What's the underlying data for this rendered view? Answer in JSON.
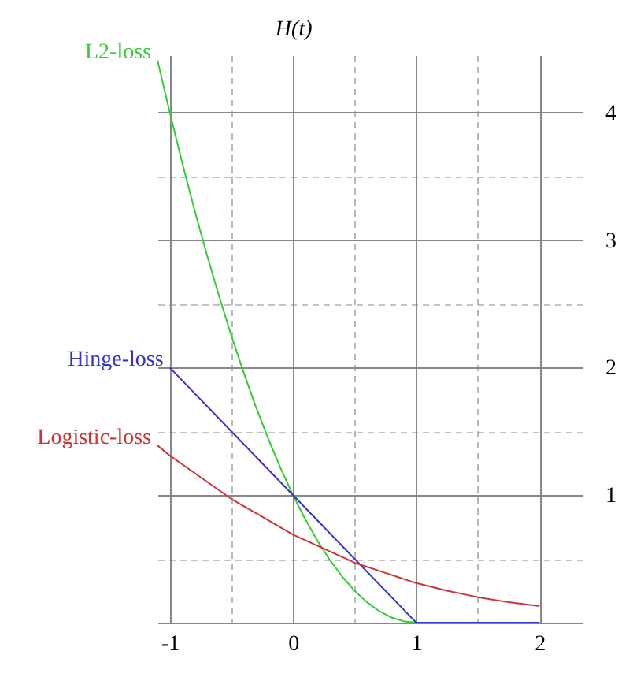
{
  "chart_data": {
    "type": "line",
    "ylabel": "H(t)",
    "xlim": [
      -1.1,
      2.35
    ],
    "ylim": [
      0,
      4.45
    ],
    "xticks": [
      -1,
      {
        "value": -0.5,
        "label": null
      },
      0,
      {
        "value": 0.5,
        "label": null
      },
      1,
      {
        "value": 1.5,
        "label": null
      },
      2
    ],
    "yticks": [
      {
        "value": 0,
        "label": null
      },
      {
        "value": 0.5,
        "label": null
      },
      1,
      {
        "value": 1.5,
        "label": null
      },
      2,
      {
        "value": 2.5,
        "label": null
      },
      3,
      {
        "value": 3.5,
        "label": null
      },
      4
    ],
    "grid": true,
    "legend": false,
    "marker": "none",
    "line_style": "solid",
    "series": [
      {
        "name": "L2-loss",
        "color": "#33cc33",
        "x": [
          -1.1,
          -1,
          -0.9,
          -0.8,
          -0.7,
          -0.6,
          -0.5,
          -0.4,
          -0.3,
          -0.2,
          -0.1,
          0,
          0.1,
          0.2,
          0.3,
          0.4,
          0.5,
          0.6,
          0.7,
          0.8,
          0.9,
          1,
          2
        ],
        "values": [
          4.41,
          4.0,
          3.61,
          3.24,
          2.89,
          2.56,
          2.25,
          1.96,
          1.69,
          1.44,
          1.21,
          1.0,
          0.81,
          0.64,
          0.49,
          0.36,
          0.25,
          0.16,
          0.09,
          0.04,
          0.01,
          0,
          0
        ]
      },
      {
        "name": "Hinge-loss",
        "color": "#3333cc",
        "x": [
          -1,
          0,
          1,
          2
        ],
        "values": [
          2,
          1,
          0,
          0
        ]
      },
      {
        "name": "Logistic-loss",
        "color": "#cc3333",
        "x": [
          -1.1,
          -1,
          -0.75,
          -0.5,
          -0.25,
          0,
          0.25,
          0.5,
          0.75,
          1,
          1.25,
          1.5,
          1.75,
          2
        ],
        "values": [
          1.39,
          1.31,
          1.14,
          0.97,
          0.83,
          0.69,
          0.58,
          0.47,
          0.39,
          0.31,
          0.25,
          0.2,
          0.16,
          0.13
        ]
      }
    ]
  }
}
